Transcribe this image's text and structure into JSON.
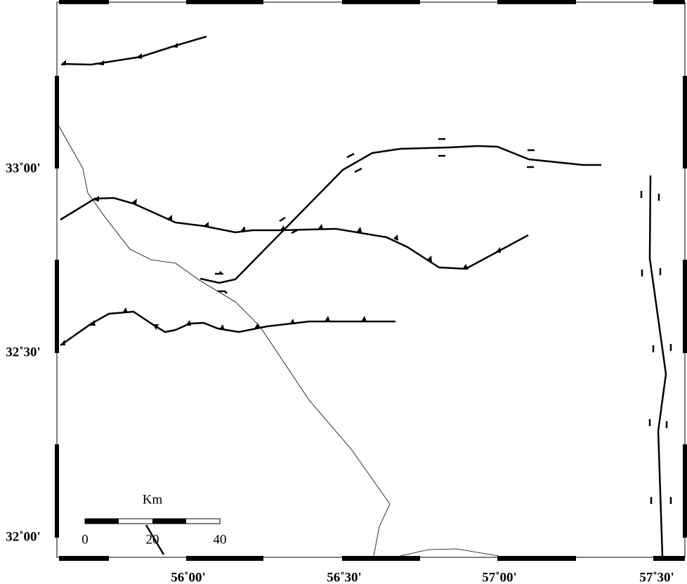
{
  "map": {
    "lat_labels": [
      "33˚00'",
      "32˚30'",
      "32˚00'"
    ],
    "lon_labels": [
      "56˚00'",
      "56˚30'",
      "57˚00'",
      "57˚30'"
    ],
    "scale_bar": {
      "title": "Km",
      "labels": [
        "0",
        "20",
        "40"
      ]
    }
  }
}
